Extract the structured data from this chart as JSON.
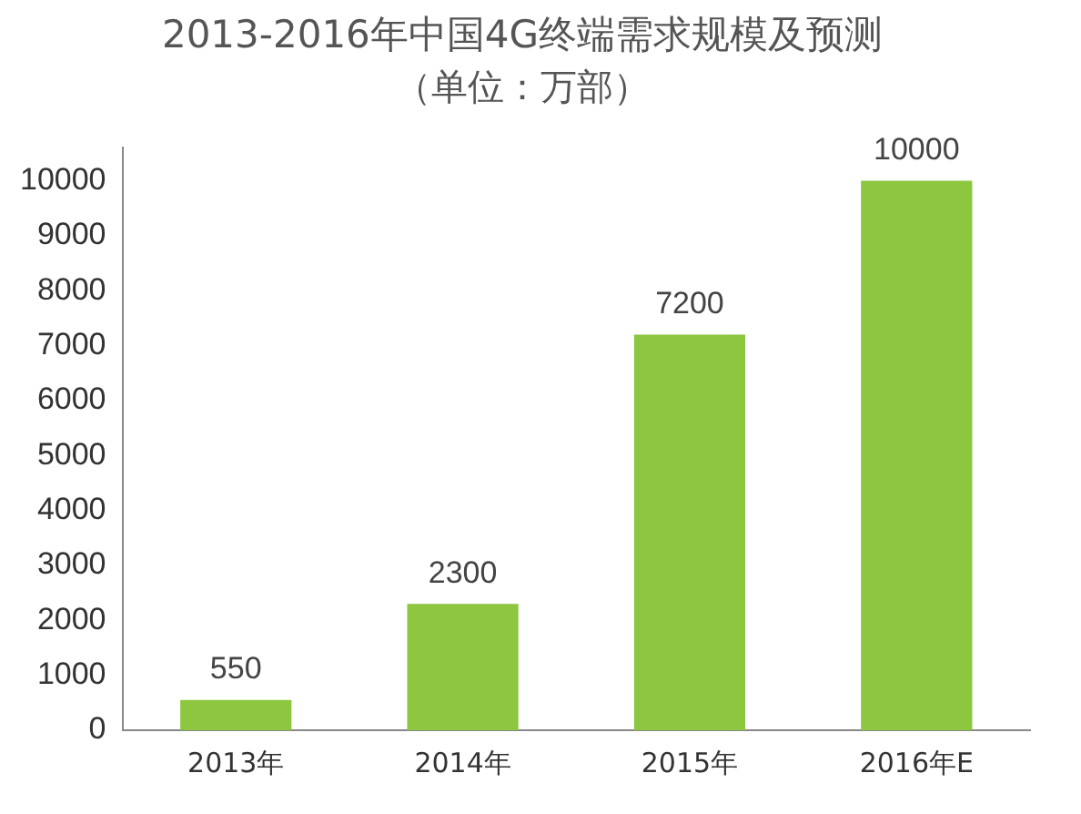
{
  "chart_data": {
    "type": "bar",
    "title": "2013-2016年中国4G终端需求规模及预测",
    "subtitle": "（单位：万部）",
    "categories": [
      "2013年",
      "2014年",
      "2015年",
      "2016年E"
    ],
    "values": [
      550,
      2300,
      7200,
      10000
    ],
    "color": "#8dc63f",
    "ylim": [
      0,
      10600
    ],
    "yticks": [
      0,
      1000,
      2000,
      3000,
      4000,
      5000,
      6000,
      7000,
      8000,
      9000,
      10000
    ],
    "grid": false,
    "legend": false,
    "data_labels": true
  }
}
